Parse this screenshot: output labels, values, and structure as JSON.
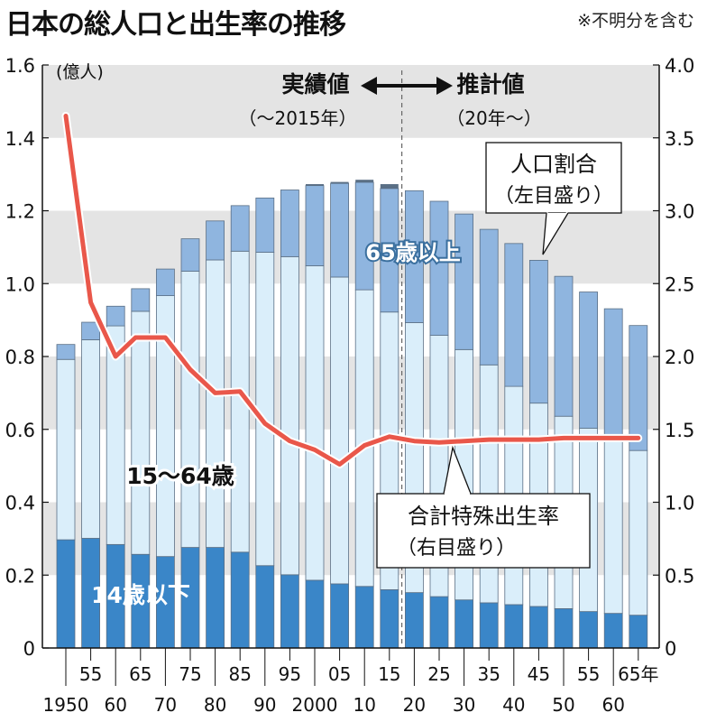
{
  "title": "日本の総人口と出生率の推移",
  "note": "※不明分を含む",
  "colors": {
    "band": "#e4e4e4",
    "under14": "#3a86c8",
    "age15_64": "#daeefa",
    "over65": "#8fb5df",
    "fertility": "#e9574a",
    "outline": "#5a6f85"
  },
  "chart_data": {
    "type": "bar",
    "title": "日本の総人口と出生率の推移",
    "x_labels_upper": [
      "55",
      "65",
      "75",
      "85",
      "95",
      "05",
      "15",
      "25",
      "35",
      "45",
      "55",
      "65年"
    ],
    "x_labels_lower": [
      "1950",
      "60",
      "70",
      "80",
      "90",
      "2000",
      "10",
      "20",
      "30",
      "40",
      "50",
      "60"
    ],
    "years": [
      1950,
      1955,
      1960,
      1965,
      1970,
      1975,
      1980,
      1985,
      1990,
      1995,
      2000,
      2005,
      2010,
      2015,
      2020,
      2025,
      2030,
      2035,
      2040,
      2045,
      2050,
      2055,
      2060,
      2065
    ],
    "left_axis": {
      "unit": "(億人)",
      "ylim": [
        0,
        1.6
      ],
      "ticks": [
        "0",
        "0.2",
        "0.4",
        "0.6",
        "0.8",
        "1.0",
        "1.2",
        "1.4",
        "1.6"
      ]
    },
    "right_axis": {
      "ylim": [
        0,
        4.0
      ],
      "ticks": [
        "0",
        "0.5",
        "1.0",
        "1.5",
        "2.0",
        "2.5",
        "3.0",
        "3.5",
        "4.0"
      ]
    },
    "series": [
      {
        "name": "14歳以下",
        "values": [
          0.297,
          0.301,
          0.284,
          0.257,
          0.251,
          0.276,
          0.276,
          0.263,
          0.226,
          0.201,
          0.186,
          0.176,
          0.169,
          0.16,
          0.152,
          0.141,
          0.132,
          0.124,
          0.119,
          0.114,
          0.108,
          0.1,
          0.095,
          0.09
        ]
      },
      {
        "name": "15～64歳",
        "values": [
          0.495,
          0.545,
          0.6,
          0.667,
          0.716,
          0.758,
          0.789,
          0.826,
          0.86,
          0.873,
          0.863,
          0.842,
          0.814,
          0.762,
          0.741,
          0.717,
          0.687,
          0.653,
          0.599,
          0.558,
          0.528,
          0.503,
          0.477,
          0.452
        ]
      },
      {
        "name": "65歳以上",
        "values": [
          0.041,
          0.048,
          0.054,
          0.062,
          0.073,
          0.089,
          0.107,
          0.125,
          0.149,
          0.183,
          0.22,
          0.257,
          0.295,
          0.339,
          0.362,
          0.368,
          0.372,
          0.372,
          0.392,
          0.392,
          0.384,
          0.374,
          0.359,
          0.343
        ]
      }
    ],
    "unknown_segment": {
      "note": "※不明分を含む",
      "values": [
        0,
        0,
        0,
        0,
        0,
        0,
        0,
        0,
        0,
        0,
        0.004,
        0.004,
        0.007,
        0.012,
        0,
        0,
        0,
        0,
        0,
        0,
        0,
        0,
        0,
        0
      ]
    },
    "fertility_rate": {
      "name": "合計特殊出生率",
      "points": [
        [
          1950,
          3.65
        ],
        [
          1955,
          2.37
        ],
        [
          1960,
          2.0
        ],
        [
          1964,
          2.13
        ],
        [
          1970,
          2.13
        ],
        [
          1975,
          1.91
        ],
        [
          1980,
          1.75
        ],
        [
          1985,
          1.76
        ],
        [
          1990,
          1.54
        ],
        [
          1995,
          1.42
        ],
        [
          2000,
          1.36
        ],
        [
          2005,
          1.26
        ],
        [
          2010,
          1.39
        ],
        [
          2015,
          1.45
        ],
        [
          2020,
          1.42
        ],
        [
          2025,
          1.41
        ],
        [
          2030,
          1.42
        ],
        [
          2035,
          1.43
        ],
        [
          2040,
          1.43
        ],
        [
          2045,
          1.43
        ],
        [
          2050,
          1.44
        ],
        [
          2055,
          1.44
        ],
        [
          2060,
          1.44
        ],
        [
          2065,
          1.44
        ]
      ]
    },
    "divider": {
      "left_label": "実績値",
      "left_sub": "（～2015年）",
      "right_label": "推計値",
      "right_sub": "（20年～）"
    },
    "annotations": [
      {
        "text": "65歳以上"
      },
      {
        "text": "15～64歳"
      },
      {
        "text": "14歳以下"
      },
      {
        "text": "人口割合",
        "text2": "（左目盛り）"
      },
      {
        "text": "合計特殊出生率",
        "text2": "（右目盛り）"
      }
    ]
  }
}
